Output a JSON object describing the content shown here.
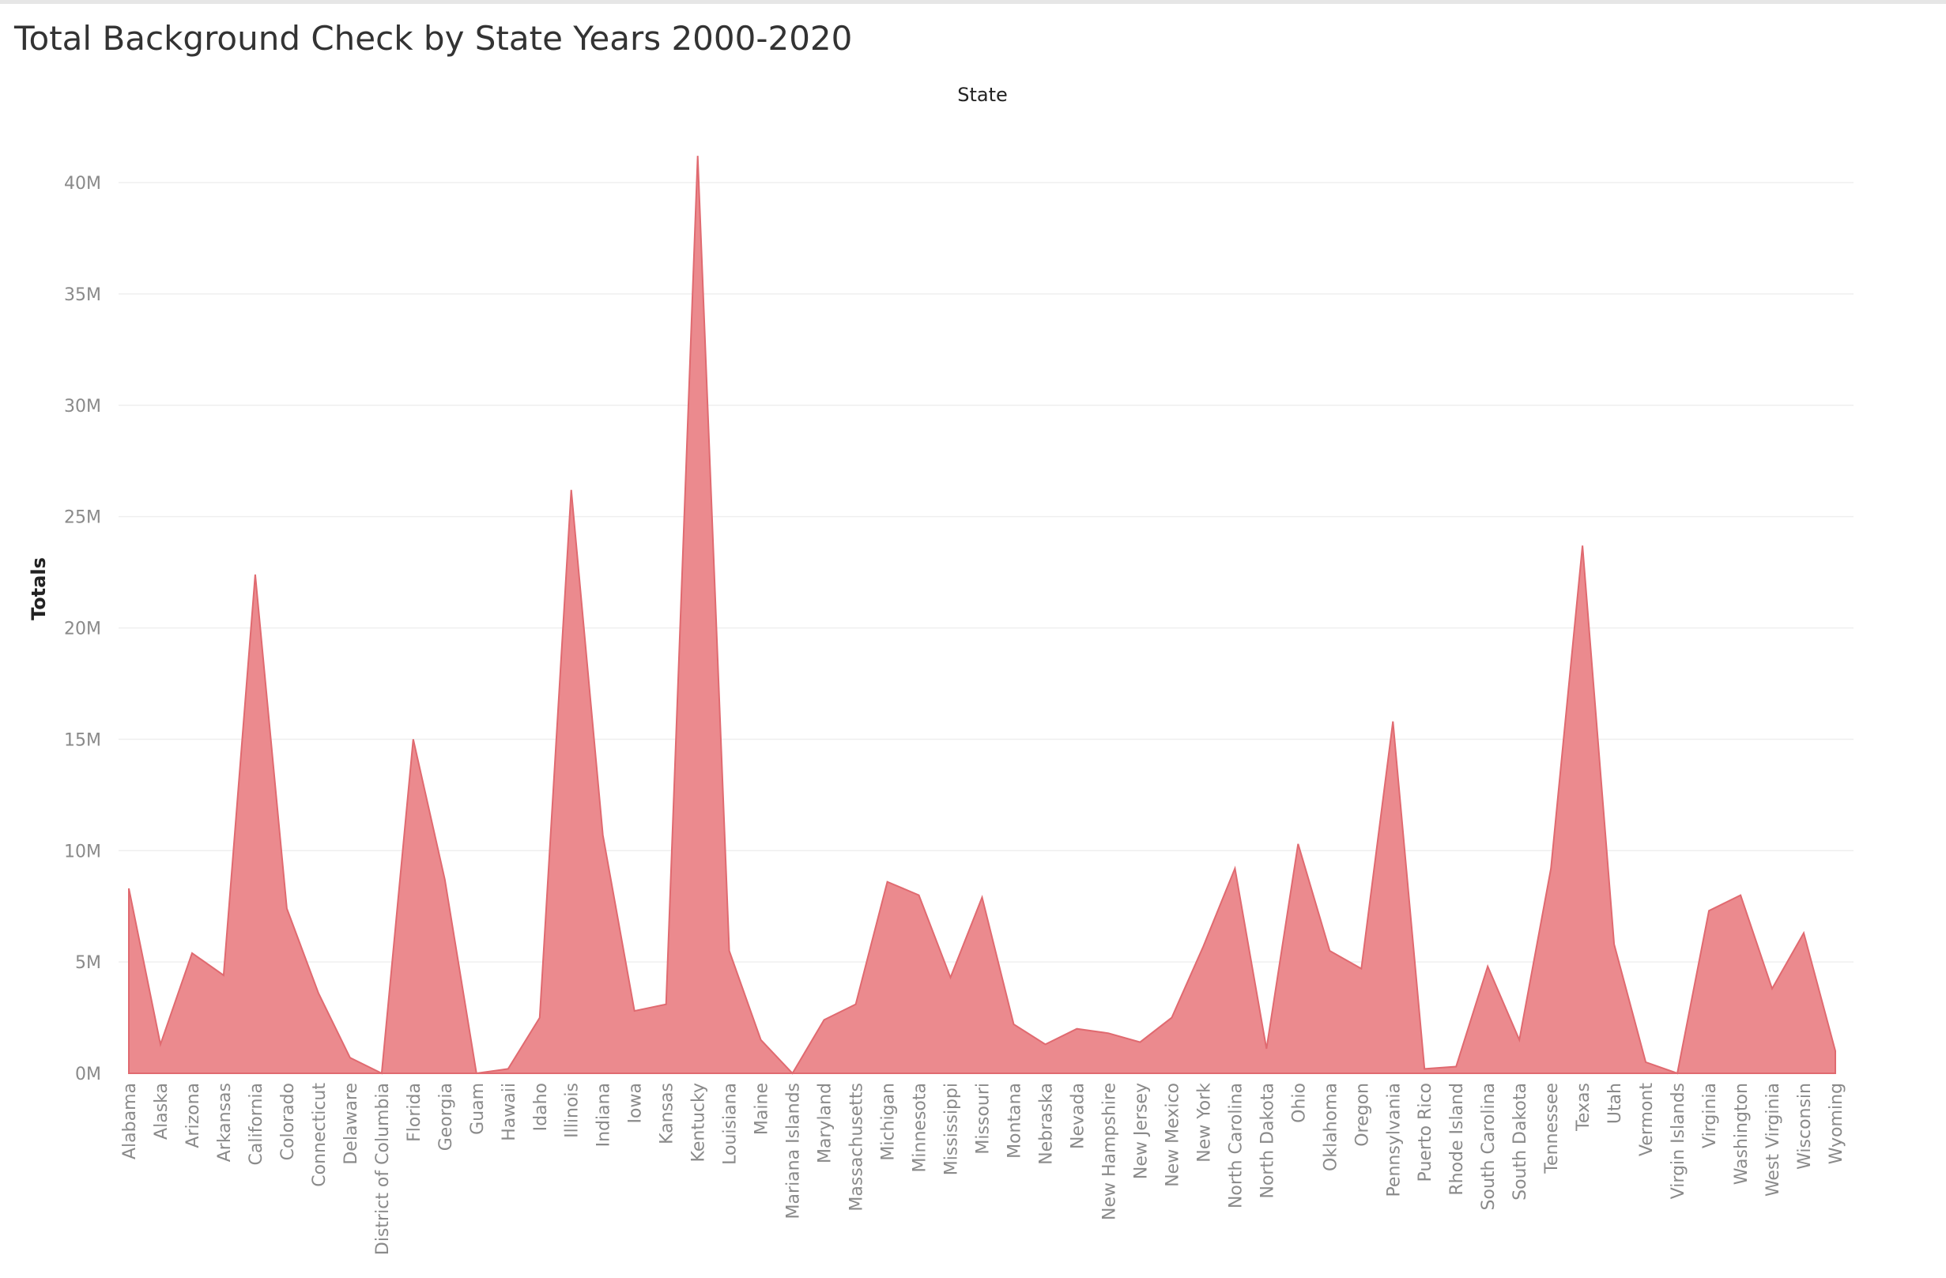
{
  "colors": {
    "area_fill": "#eb8a8e",
    "area_stroke": "#e06a70",
    "gridline": "#efefef",
    "tick_text": "#8a8a8a"
  },
  "chart_data": {
    "type": "area",
    "title": "Total Background Check by State Years 2000-2020",
    "column_header": "State",
    "xlabel": "",
    "ylabel": "Totals",
    "ylim": [
      0,
      43000000
    ],
    "yticks": [
      0,
      5000000,
      10000000,
      15000000,
      20000000,
      25000000,
      30000000,
      35000000,
      40000000
    ],
    "ytick_labels": [
      "0M",
      "5M",
      "10M",
      "15M",
      "20M",
      "25M",
      "30M",
      "35M",
      "40M"
    ],
    "grid": true,
    "categories": [
      "Alabama",
      "Alaska",
      "Arizona",
      "Arkansas",
      "California",
      "Colorado",
      "Connecticut",
      "Delaware",
      "District of Columbia",
      "Florida",
      "Georgia",
      "Guam",
      "Hawaii",
      "Idaho",
      "Illinois",
      "Indiana",
      "Iowa",
      "Kansas",
      "Kentucky",
      "Louisiana",
      "Maine",
      "Mariana Islands",
      "Maryland",
      "Massachusetts",
      "Michigan",
      "Minnesota",
      "Mississippi",
      "Missouri",
      "Montana",
      "Nebraska",
      "Nevada",
      "New Hampshire",
      "New Jersey",
      "New Mexico",
      "New York",
      "North Carolina",
      "North Dakota",
      "Ohio",
      "Oklahoma",
      "Oregon",
      "Pennsylvania",
      "Puerto Rico",
      "Rhode Island",
      "South Carolina",
      "South Dakota",
      "Tennessee",
      "Texas",
      "Utah",
      "Vermont",
      "Virgin Islands",
      "Virginia",
      "Washington",
      "West Virginia",
      "Wisconsin",
      "Wyoming"
    ],
    "values": [
      8300000,
      1300000,
      5400000,
      4400000,
      22400000,
      7400000,
      3600000,
      700000,
      0,
      15000000,
      8700000,
      0,
      200000,
      2500000,
      26200000,
      10700000,
      2800000,
      3100000,
      41200000,
      5500000,
      1500000,
      0,
      2400000,
      3100000,
      8600000,
      8000000,
      4300000,
      7900000,
      2200000,
      1300000,
      2000000,
      1800000,
      1400000,
      2500000,
      5700000,
      9200000,
      1100000,
      10300000,
      5500000,
      4700000,
      15800000,
      200000,
      300000,
      4800000,
      1500000,
      9200000,
      23700000,
      5800000,
      500000,
      0,
      7300000,
      8000000,
      3800000,
      6300000,
      1000000
    ]
  }
}
